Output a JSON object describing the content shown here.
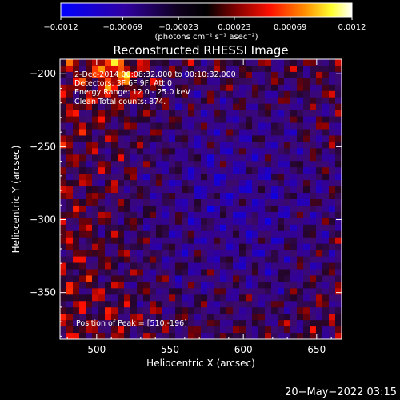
{
  "chart_data": {
    "type": "heatmap",
    "title": "Reconstructed RHESSI Image",
    "xlabel": "Heliocentric X (arcsec)",
    "ylabel": "Heliocentric Y (arcsec)",
    "xlim": [
      475,
      667
    ],
    "ylim": [
      -382,
      -190
    ],
    "x_ticks": [
      500,
      550,
      600,
      650
    ],
    "x_tick_labels": [
      "500",
      "550",
      "600",
      "650"
    ],
    "y_ticks": [
      -200,
      -250,
      -300,
      -350
    ],
    "y_tick_labels": [
      "−200",
      "−250",
      "−300",
      "−350"
    ],
    "annotations": [
      " 2-Dec-2014 00:08:32.000 to 00:10:32.000",
      "Detectors: 3F 6F 9F, Att 0",
      "Energy Range: 12.0 - 25.0 keV",
      "Clean    Total counts: 874."
    ],
    "peak_label": "Position of Peak = [510,-196]",
    "peak": [
      510,
      -196
    ],
    "colorbar": {
      "min": -0.0012,
      "max": 0.0012,
      "tick_values": [
        -0.0012,
        -0.00069,
        -0.00023,
        0.00023,
        0.00069,
        0.0012
      ],
      "tick_labels": [
        "−0.0012",
        "−0.00069",
        "−0.00023",
        "0.00023",
        "0.00069",
        "0.0012"
      ],
      "units_label": "(photons cm⁻² s⁻¹ asec⁻²)"
    },
    "grid": false,
    "colormap": [
      "#0000ff",
      "#4000a0",
      "#000000",
      "#800000",
      "#ff0000",
      "#ff8000",
      "#ffff00",
      "#ffffff"
    ]
  },
  "timestamp": "20−May−2022 03:15"
}
